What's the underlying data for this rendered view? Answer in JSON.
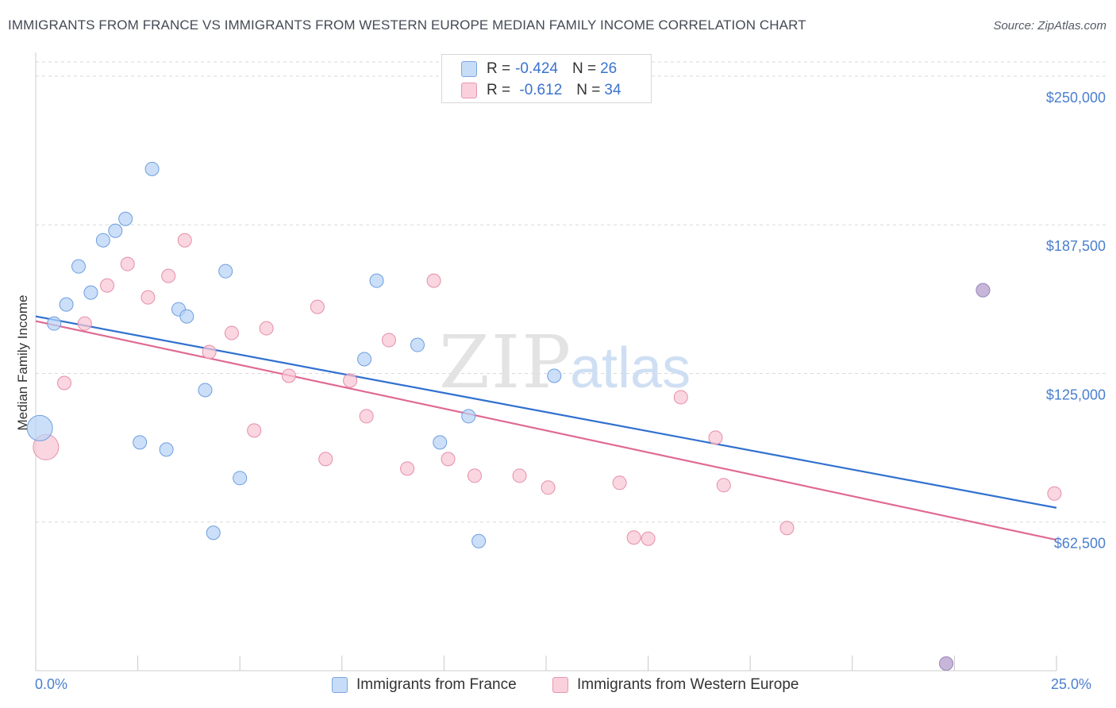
{
  "title": "IMMIGRANTS FROM FRANCE VS IMMIGRANTS FROM WESTERN EUROPE MEDIAN FAMILY INCOME CORRELATION CHART",
  "source": "Source: ZipAtlas.com",
  "watermark": {
    "zip": "ZIP",
    "atlas": "atlas"
  },
  "colors": {
    "france_fill": "#b8d3f5",
    "france_stroke": "#6d9ee0",
    "france_line": "#3070d0",
    "we_fill": "#f8c6d5",
    "we_stroke": "#e68ea8",
    "we_line": "#e06a95",
    "tick_text": "#4a7fcf",
    "grid": "#d9d9d9"
  },
  "legend": {
    "rows": [
      {
        "r_label": "R = ",
        "r_value": "-0.424",
        "n_label": "N = ",
        "n_value": "26"
      },
      {
        "r_label": "R = ",
        "r_value": " -0.612",
        "n_label": "N = ",
        "n_value": "34"
      }
    ]
  },
  "chart_data": {
    "type": "scatter",
    "title": "IMMIGRANTS FROM FRANCE VS IMMIGRANTS FROM WESTERN EUROPE MEDIAN FAMILY INCOME CORRELATION CHART",
    "xlabel": "",
    "ylabel": "Median Family Income",
    "xlim": [
      0,
      25
    ],
    "ylim": [
      0,
      256000
    ],
    "x_tick_labels": [
      "0.0%",
      "25.0%"
    ],
    "y_ticks": [
      62500,
      125000,
      187500,
      250000
    ],
    "y_tick_labels": [
      "$62,500",
      "$125,000",
      "$187,500",
      "$250,000"
    ],
    "grid": true,
    "legend_position": "top-center",
    "series": [
      {
        "name": "Immigrants from France",
        "r": -0.424,
        "n": 26,
        "trend": {
          "x": [
            0,
            25
          ],
          "y": [
            149000,
            68500
          ]
        },
        "points": [
          {
            "x": 0.1,
            "y": 102000,
            "size": "large"
          },
          {
            "x": 0.45,
            "y": 146000
          },
          {
            "x": 0.75,
            "y": 154000
          },
          {
            "x": 1.05,
            "y": 170000
          },
          {
            "x": 1.35,
            "y": 159000
          },
          {
            "x": 1.65,
            "y": 181000
          },
          {
            "x": 1.95,
            "y": 185000
          },
          {
            "x": 2.2,
            "y": 190000
          },
          {
            "x": 2.55,
            "y": 96000
          },
          {
            "x": 2.85,
            "y": 211000
          },
          {
            "x": 3.2,
            "y": 93000
          },
          {
            "x": 3.5,
            "y": 152000
          },
          {
            "x": 3.7,
            "y": 149000
          },
          {
            "x": 4.15,
            "y": 118000
          },
          {
            "x": 4.35,
            "y": 58000
          },
          {
            "x": 4.65,
            "y": 168000
          },
          {
            "x": 5.0,
            "y": 81000
          },
          {
            "x": 8.05,
            "y": 131000
          },
          {
            "x": 8.35,
            "y": 164000
          },
          {
            "x": 9.35,
            "y": 137000
          },
          {
            "x": 9.9,
            "y": 96000
          },
          {
            "x": 10.6,
            "y": 107000
          },
          {
            "x": 10.85,
            "y": 54500
          },
          {
            "x": 12.7,
            "y": 124000
          },
          {
            "x": 23.2,
            "y": 160000,
            "overlap": true
          },
          {
            "x": 22.3,
            "y": 3000,
            "overlap": true
          }
        ]
      },
      {
        "name": "Immigrants from Western Europe",
        "r": -0.612,
        "n": 34,
        "trend": {
          "x": [
            0,
            25
          ],
          "y": [
            147000,
            55000
          ]
        },
        "points": [
          {
            "x": 0.25,
            "y": 94000,
            "size": "large"
          },
          {
            "x": 0.7,
            "y": 121000
          },
          {
            "x": 1.2,
            "y": 146000
          },
          {
            "x": 1.75,
            "y": 162000
          },
          {
            "x": 2.25,
            "y": 171000
          },
          {
            "x": 2.75,
            "y": 157000
          },
          {
            "x": 3.25,
            "y": 166000
          },
          {
            "x": 3.65,
            "y": 181000
          },
          {
            "x": 4.25,
            "y": 134000
          },
          {
            "x": 4.8,
            "y": 142000
          },
          {
            "x": 5.35,
            "y": 101000
          },
          {
            "x": 5.65,
            "y": 144000
          },
          {
            "x": 6.2,
            "y": 124000
          },
          {
            "x": 6.9,
            "y": 153000
          },
          {
            "x": 7.1,
            "y": 89000
          },
          {
            "x": 7.7,
            "y": 122000
          },
          {
            "x": 8.1,
            "y": 107000
          },
          {
            "x": 8.65,
            "y": 139000
          },
          {
            "x": 9.1,
            "y": 85000
          },
          {
            "x": 9.75,
            "y": 164000
          },
          {
            "x": 10.1,
            "y": 89000
          },
          {
            "x": 10.75,
            "y": 82000
          },
          {
            "x": 11.85,
            "y": 82000
          },
          {
            "x": 12.55,
            "y": 77000
          },
          {
            "x": 14.3,
            "y": 79000
          },
          {
            "x": 14.65,
            "y": 56000
          },
          {
            "x": 15.0,
            "y": 55500
          },
          {
            "x": 15.8,
            "y": 115000
          },
          {
            "x": 16.65,
            "y": 98000
          },
          {
            "x": 16.85,
            "y": 78000
          },
          {
            "x": 18.4,
            "y": 60000
          },
          {
            "x": 23.2,
            "y": 160000,
            "overlap": true
          },
          {
            "x": 24.95,
            "y": 74500
          },
          {
            "x": 22.3,
            "y": 3000,
            "overlap": true
          }
        ]
      }
    ]
  }
}
